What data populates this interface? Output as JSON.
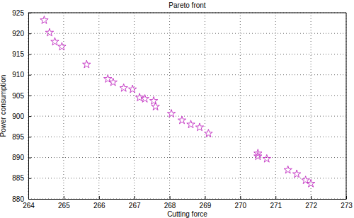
{
  "chart_data": {
    "type": "scatter",
    "title": "Pareto front",
    "x_label": "Cutting force",
    "y_label": "Power consumption",
    "x": [
      264.45,
      264.6,
      264.75,
      264.95,
      265.65,
      266.25,
      266.4,
      266.7,
      266.95,
      267.15,
      267.3,
      267.55,
      267.6,
      268.05,
      268.35,
      268.6,
      268.85,
      269.1,
      270.5,
      270.5,
      270.75,
      271.35,
      271.6,
      271.85,
      272.0
    ],
    "values": [
      923.2,
      920.2,
      918.0,
      916.8,
      912.5,
      909.0,
      908.2,
      906.8,
      906.5,
      904.5,
      904.2,
      903.7,
      902.3,
      900.6,
      899.0,
      898.0,
      897.3,
      895.8,
      891.0,
      890.3,
      889.7,
      887.0,
      886.0,
      884.5,
      883.7
    ],
    "color": "#c63cc6",
    "marker": "star",
    "xlim": [
      264,
      273
    ],
    "xticks": [
      264,
      265,
      266,
      267,
      268,
      269,
      270,
      271,
      272,
      273
    ],
    "ylim": [
      880,
      925
    ],
    "yticks": [
      880,
      885,
      890,
      895,
      900,
      905,
      910,
      915,
      920,
      925
    ],
    "grid": true
  }
}
